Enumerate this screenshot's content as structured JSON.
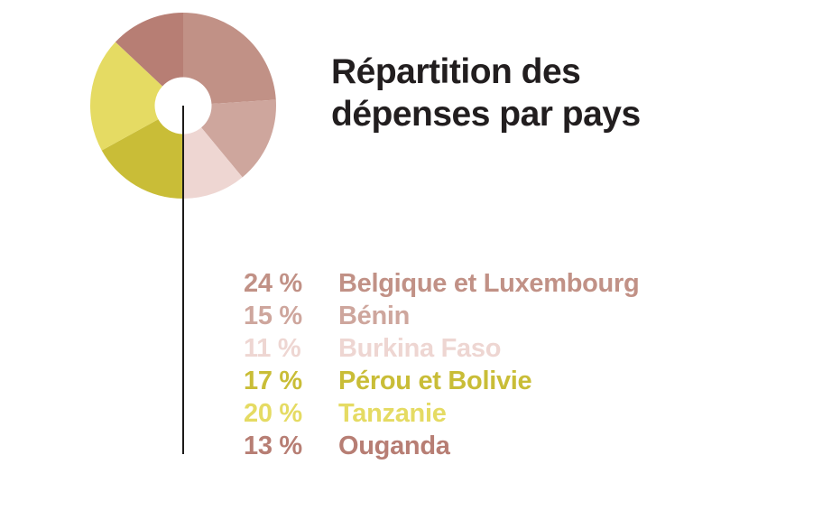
{
  "header": {
    "title": "Répartition des dépenses par pays"
  },
  "chart_data": {
    "type": "pie",
    "subtype": "donut",
    "title": "Répartition des dépenses par pays",
    "title_color": "#221e1f",
    "start_angle_deg_from_top": 0,
    "direction": "clockwise",
    "outer_radius_px": 103,
    "inner_radius_px": 31.5,
    "hole_color": "#ffffff",
    "annotation_line_color": "#1c1b19",
    "legend_position": "right-below-title",
    "segments": [
      {
        "label": "Belgique et Luxembourg",
        "value_pct": 24,
        "display": "24 %",
        "color": "#c19186"
      },
      {
        "label": "Bénin",
        "value_pct": 15,
        "display": "15 %",
        "color": "#cea69d"
      },
      {
        "label": "Burkina Faso",
        "value_pct": 11,
        "display": "11 %",
        "color": "#eed6d2"
      },
      {
        "label": "Pérou et Bolivie",
        "value_pct": 17,
        "display": "17 %",
        "color": "#c9bd37"
      },
      {
        "label": "Tanzanie",
        "value_pct": 20,
        "display": "20 %",
        "color": "#e5db63"
      },
      {
        "label": "Ouganda",
        "value_pct": 13,
        "display": "13 %",
        "color": "#b77e74"
      }
    ]
  }
}
